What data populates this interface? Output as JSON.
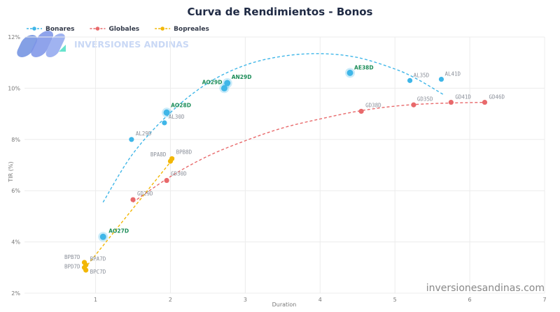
{
  "watermark": {
    "brand": "INVERSIONES ANDINAS",
    "site": "inversionesandinas.com"
  },
  "colors": {
    "bonares": "#3fb6e8",
    "globales": "#e8696b",
    "bopreales": "#f2b705",
    "highlight_label": "#1e8e5a"
  },
  "chart_data": {
    "type": "scatter",
    "title": "Curva de Rendimientos - Bonos",
    "xlabel": "Duration",
    "ylabel": "TIR (%)",
    "xlim": [
      0.05,
      7
    ],
    "ylim": [
      2,
      12
    ],
    "xticks": [
      1,
      2,
      3,
      4,
      5,
      6,
      7
    ],
    "yticks": [
      2,
      4,
      6,
      8,
      10,
      12
    ],
    "ytick_suffix": "%",
    "grid": true,
    "legend": "top-left",
    "series": [
      {
        "name": "Bonares",
        "color": "#3fb6e8",
        "points": [
          {
            "label": "AO27D",
            "x": 1.1,
            "y": 4.2,
            "highlight": true
          },
          {
            "label": "AL29D",
            "x": 1.48,
            "y": 8.0,
            "highlight": false
          },
          {
            "label": "AL30D",
            "x": 1.92,
            "y": 8.65,
            "highlight": false
          },
          {
            "label": "AO28D",
            "x": 1.95,
            "y": 9.05,
            "highlight": true
          },
          {
            "label": "AO29D",
            "x": 2.72,
            "y": 10.0,
            "highlight": true
          },
          {
            "label": "AN29D",
            "x": 2.76,
            "y": 10.2,
            "highlight": true
          },
          {
            "label": "AE38D",
            "x": 4.4,
            "y": 10.6,
            "highlight": true
          },
          {
            "label": "AL35D",
            "x": 5.2,
            "y": 10.3,
            "highlight": false
          },
          {
            "label": "AL41D",
            "x": 5.62,
            "y": 10.35,
            "highlight": false
          }
        ],
        "trend": [
          [
            1.1,
            5.55
          ],
          [
            1.5,
            7.45
          ],
          [
            2.0,
            9.05
          ],
          [
            2.5,
            10.2
          ],
          [
            3.0,
            10.9
          ],
          [
            3.5,
            11.25
          ],
          [
            4.0,
            11.35
          ],
          [
            4.5,
            11.2
          ],
          [
            5.0,
            10.75
          ],
          [
            5.3,
            10.35
          ],
          [
            5.65,
            9.75
          ]
        ]
      },
      {
        "name": "Globales",
        "color": "#e8696b",
        "points": [
          {
            "label": "GD29D",
            "x": 1.5,
            "y": 5.65,
            "highlight": false
          },
          {
            "label": "GD30D",
            "x": 1.95,
            "y": 6.4,
            "highlight": false
          },
          {
            "label": "GD38D",
            "x": 4.55,
            "y": 9.1,
            "highlight": false
          },
          {
            "label": "GD35D",
            "x": 5.25,
            "y": 9.35,
            "highlight": false
          },
          {
            "label": "GD41D",
            "x": 5.75,
            "y": 9.45,
            "highlight": false
          },
          {
            "label": "GD46D",
            "x": 6.2,
            "y": 9.45,
            "highlight": false
          }
        ],
        "trend": [
          [
            1.5,
            5.55
          ],
          [
            2.0,
            6.55
          ],
          [
            2.5,
            7.35
          ],
          [
            3.0,
            7.95
          ],
          [
            3.5,
            8.45
          ],
          [
            4.0,
            8.8
          ],
          [
            4.5,
            9.1
          ],
          [
            5.0,
            9.3
          ],
          [
            5.5,
            9.4
          ],
          [
            6.2,
            9.45
          ]
        ]
      },
      {
        "name": "Bopreales",
        "color": "#f2b705",
        "points": [
          {
            "label": "BPB7D",
            "x": 0.85,
            "y": 3.2,
            "highlight": false
          },
          {
            "label": "BPA7D",
            "x": 0.87,
            "y": 3.1,
            "highlight": false
          },
          {
            "label": "BPD7D",
            "x": 0.85,
            "y": 3.0,
            "highlight": false
          },
          {
            "label": "BPC7D",
            "x": 0.87,
            "y": 2.9,
            "highlight": false
          },
          {
            "label": "BPA8D",
            "x": 2.0,
            "y": 7.15,
            "highlight": false
          },
          {
            "label": "BPB8D",
            "x": 2.02,
            "y": 7.25,
            "highlight": false
          }
        ],
        "trend": [
          [
            0.85,
            2.95
          ],
          [
            2.05,
            7.3
          ]
        ]
      }
    ]
  }
}
